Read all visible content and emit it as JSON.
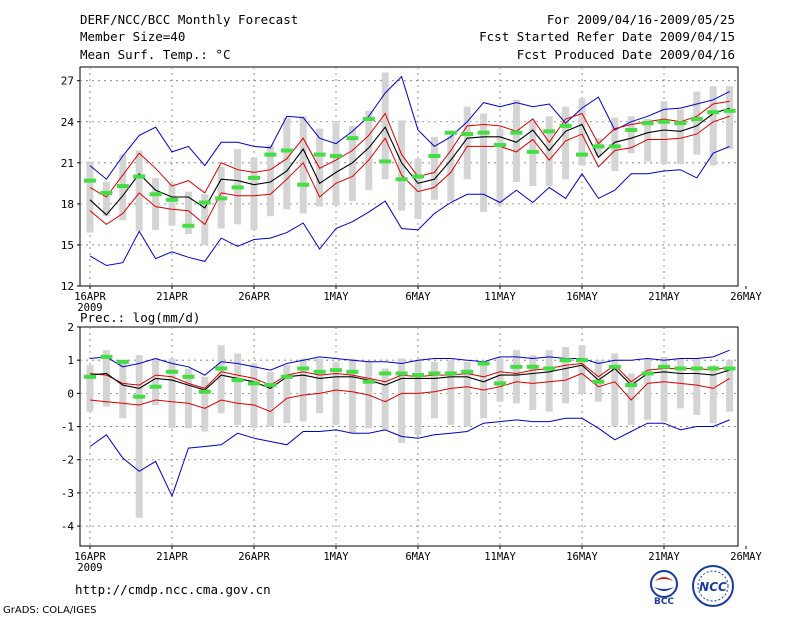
{
  "header": {
    "title": "DERF/NCC/BCC Monthly Forecast",
    "member_size": "Member Size=40",
    "variable": "Mean Surf. Temp.: °C",
    "period": "For 2009/04/16-2009/05/25",
    "started": "Fcst Started Refer Date 2009/04/15",
    "produced": "Fcst Produced Date 2009/04/16"
  },
  "footer": {
    "url": "http://cmdp.ncc.cma.gov.cn",
    "grads": "GrADS: COLA/IGES",
    "logo_bcc": "BCC",
    "logo_ncc": "NCC"
  },
  "colors": {
    "max_min": "#0000cc",
    "spread": "#dd0000",
    "ensemble_mean": "#000000",
    "observed_bar": "#44dd44",
    "range_bar": "#d4d4d4",
    "grid": "#777777"
  },
  "chart_data": [
    {
      "type": "line",
      "id": "temp",
      "ylim": [
        12,
        28
      ],
      "yticks": [
        12,
        15,
        18,
        21,
        24,
        27
      ],
      "xticks": [
        {
          "day": 0,
          "label": "16APR",
          "sub": "2009"
        },
        {
          "day": 5,
          "label": "21APR"
        },
        {
          "day": 10,
          "label": "26APR"
        },
        {
          "day": 15,
          "label": "1MAY"
        },
        {
          "day": 20,
          "label": "6MAY"
        },
        {
          "day": 25,
          "label": "11MAY"
        },
        {
          "day": 30,
          "label": "16MAY"
        },
        {
          "day": 35,
          "label": "21MAY"
        },
        {
          "day": 40,
          "label": "26MAY"
        }
      ],
      "x": [
        0,
        1,
        2,
        3,
        4,
        5,
        6,
        7,
        8,
        9,
        10,
        11,
        12,
        13,
        14,
        15,
        16,
        17,
        18,
        19,
        20,
        21,
        22,
        23,
        24,
        25,
        26,
        27,
        28,
        29,
        30,
        31,
        32,
        33,
        34,
        35,
        36,
        37,
        38,
        39
      ],
      "series": [
        {
          "name": "max",
          "color": "#0000cc",
          "values": [
            20.8,
            19.8,
            21.5,
            23.0,
            23.6,
            21.8,
            22.2,
            20.8,
            22.5,
            22.5,
            22.2,
            22.1,
            24.4,
            24.3,
            22.8,
            22.4,
            23.3,
            24.4,
            26.1,
            27.3,
            23.4,
            22.2,
            22.9,
            24.0,
            25.4,
            25.1,
            25.4,
            25.1,
            25.3,
            23.9,
            25.0,
            25.8,
            23.4,
            24.0,
            24.4,
            24.9,
            25.0,
            25.3,
            25.6,
            26.2
          ]
        },
        {
          "name": "p75",
          "color": "#dd0000",
          "values": [
            19.2,
            18.5,
            20.1,
            21.7,
            20.6,
            19.3,
            19.7,
            18.8,
            21.0,
            20.5,
            20.3,
            20.5,
            21.3,
            22.8,
            20.6,
            21.2,
            21.9,
            23.0,
            24.6,
            21.6,
            20.0,
            20.3,
            21.9,
            23.7,
            23.8,
            23.7,
            23.3,
            24.2,
            22.5,
            24.2,
            24.6,
            22.4,
            23.5,
            23.8,
            24.0,
            24.2,
            24.0,
            24.4,
            25.3,
            25.5
          ]
        },
        {
          "name": "mean",
          "color": "#000000",
          "values": [
            18.3,
            17.2,
            18.6,
            20.2,
            19.0,
            18.5,
            18.5,
            17.7,
            19.8,
            19.7,
            19.4,
            19.6,
            20.4,
            22.0,
            19.5,
            20.3,
            21.0,
            22.1,
            23.6,
            21.0,
            19.5,
            19.8,
            21.2,
            22.8,
            22.9,
            22.9,
            22.5,
            23.4,
            21.9,
            23.3,
            23.8,
            21.4,
            22.5,
            22.8,
            23.2,
            23.4,
            23.3,
            23.7,
            24.6,
            25.0
          ]
        },
        {
          "name": "p25",
          "color": "#dd0000",
          "values": [
            17.5,
            16.5,
            17.3,
            18.8,
            17.8,
            17.6,
            17.5,
            16.5,
            18.8,
            18.6,
            18.6,
            18.7,
            19.8,
            21.0,
            18.5,
            19.5,
            20.0,
            21.2,
            22.8,
            20.1,
            18.9,
            19.2,
            20.3,
            22.2,
            22.2,
            22.2,
            21.8,
            22.7,
            21.2,
            22.6,
            23.1,
            20.7,
            21.9,
            22.1,
            22.7,
            22.7,
            22.8,
            23.1,
            24.0,
            24.4
          ]
        },
        {
          "name": "min",
          "color": "#0000cc",
          "values": [
            14.2,
            13.5,
            13.7,
            16.0,
            14.0,
            14.5,
            14.1,
            13.8,
            15.5,
            14.9,
            15.4,
            15.5,
            15.9,
            16.6,
            14.7,
            16.2,
            16.7,
            17.4,
            18.2,
            16.2,
            16.1,
            17.3,
            18.1,
            18.7,
            18.7,
            18.1,
            19.0,
            18.1,
            19.2,
            18.4,
            20.2,
            18.4,
            19.0,
            20.2,
            20.2,
            20.4,
            20.5,
            19.9,
            21.7,
            22.2
          ]
        }
      ],
      "range_bars": {
        "low": [
          15.9,
          17.1,
          16.8,
          16.0,
          16.1,
          16.4,
          15.8,
          15.0,
          16.2,
          16.5,
          16.1,
          17.1,
          17.6,
          17.3,
          17.8,
          17.9,
          18.2,
          19.0,
          19.8,
          17.5,
          16.9,
          18.3,
          18.2,
          19.8,
          17.4,
          17.9,
          19.6,
          19.3,
          19.3,
          19.8,
          20.8,
          21.5,
          20.4,
          21.7,
          21.1,
          20.9,
          20.9,
          21.6,
          20.8,
          22.0
        ],
        "high": [
          21.1,
          19.6,
          21.6,
          21.9,
          19.9,
          19.5,
          18.9,
          18.7,
          20.7,
          22.0,
          21.4,
          22.3,
          24.3,
          24.4,
          23.5,
          23.9,
          23.7,
          24.8,
          27.6,
          24.1,
          21.3,
          22.9,
          23.0,
          25.1,
          24.6,
          23.5,
          25.6,
          24.1,
          24.4,
          25.1,
          25.7,
          22.8,
          24.3,
          24.4,
          24.2,
          25.5,
          24.9,
          26.2,
          26.6,
          26.6
        ]
      },
      "observed": [
        19.7,
        18.8,
        19.3,
        20.0,
        18.7,
        18.3,
        16.4,
        18.1,
        18.4,
        19.2,
        19.9,
        21.6,
        21.9,
        19.4,
        21.6,
        21.5,
        22.8,
        24.2,
        21.1,
        19.8,
        20.0,
        21.5,
        23.2,
        23.1,
        23.2,
        22.3,
        23.2,
        21.8,
        23.3,
        23.7,
        21.6,
        22.2,
        22.2,
        23.4,
        23.9,
        24.0,
        23.9,
        24.2,
        24.7,
        24.8
      ]
    },
    {
      "type": "line",
      "id": "precip",
      "title": "Prec.: log(mm/d)",
      "ylim": [
        -4.6,
        2
      ],
      "yticks": [
        -4,
        -3,
        -2,
        -1,
        0,
        1,
        2
      ],
      "xticks": [
        {
          "day": 0,
          "label": "16APR",
          "sub": "2009"
        },
        {
          "day": 5,
          "label": "21APR"
        },
        {
          "day": 10,
          "label": "26APR"
        },
        {
          "day": 15,
          "label": "1MAY"
        },
        {
          "day": 20,
          "label": "6MAY"
        },
        {
          "day": 25,
          "label": "11MAY"
        },
        {
          "day": 30,
          "label": "16MAY"
        },
        {
          "day": 35,
          "label": "21MAY"
        },
        {
          "day": 40,
          "label": "26MAY"
        }
      ],
      "x": [
        0,
        1,
        2,
        3,
        4,
        5,
        6,
        7,
        8,
        9,
        10,
        11,
        12,
        13,
        14,
        15,
        16,
        17,
        18,
        19,
        20,
        21,
        22,
        23,
        24,
        25,
        26,
        27,
        28,
        29,
        30,
        31,
        32,
        33,
        34,
        35,
        36,
        37,
        38,
        39
      ],
      "series": [
        {
          "name": "max",
          "color": "#0000cc",
          "values": [
            1.05,
            1.1,
            0.8,
            0.9,
            1.05,
            0.9,
            0.8,
            0.55,
            0.95,
            0.9,
            0.8,
            0.7,
            0.9,
            1.0,
            1.1,
            1.05,
            1.0,
            0.95,
            0.95,
            0.9,
            1.0,
            1.05,
            1.05,
            1.0,
            0.95,
            1.1,
            1.1,
            1.05,
            1.1,
            1.05,
            1.05,
            0.9,
            1.0,
            1.0,
            1.05,
            1.0,
            1.05,
            1.05,
            1.1,
            1.3
          ]
        },
        {
          "name": "p75",
          "color": "#dd0000",
          "values": [
            0.6,
            0.55,
            0.3,
            0.25,
            0.55,
            0.5,
            0.3,
            0.15,
            0.65,
            0.55,
            0.45,
            0.25,
            0.55,
            0.65,
            0.55,
            0.6,
            0.55,
            0.45,
            0.35,
            0.55,
            0.5,
            0.55,
            0.55,
            0.6,
            0.5,
            0.65,
            0.6,
            0.7,
            0.75,
            0.85,
            0.9,
            0.5,
            0.85,
            0.35,
            0.7,
            0.75,
            0.75,
            0.75,
            0.7,
            0.8
          ]
        },
        {
          "name": "mean",
          "color": "#000000",
          "values": [
            0.55,
            0.6,
            0.25,
            0.15,
            0.45,
            0.4,
            0.25,
            0.1,
            0.55,
            0.45,
            0.35,
            0.15,
            0.5,
            0.55,
            0.45,
            0.5,
            0.5,
            0.4,
            0.25,
            0.45,
            0.45,
            0.45,
            0.5,
            0.5,
            0.35,
            0.55,
            0.55,
            0.6,
            0.65,
            0.75,
            0.85,
            0.4,
            0.75,
            0.25,
            0.6,
            0.65,
            0.6,
            0.6,
            0.55,
            0.7
          ]
        },
        {
          "name": "p25",
          "color": "#dd0000",
          "values": [
            -0.2,
            -0.25,
            -0.3,
            -0.35,
            -0.2,
            -0.25,
            -0.3,
            -0.45,
            -0.2,
            -0.3,
            -0.35,
            -0.55,
            -0.15,
            -0.05,
            0.0,
            0.1,
            0.05,
            -0.05,
            -0.25,
            0.0,
            0.0,
            0.05,
            0.15,
            0.2,
            0.1,
            0.2,
            0.35,
            0.3,
            0.35,
            0.4,
            0.6,
            0.2,
            0.35,
            -0.2,
            0.3,
            0.35,
            0.3,
            0.25,
            0.15,
            0.45
          ]
        },
        {
          "name": "min",
          "color": "#0000cc",
          "values": [
            -1.6,
            -1.25,
            -1.95,
            -2.35,
            -2.05,
            -3.1,
            -1.65,
            -1.6,
            -1.55,
            -1.2,
            -1.35,
            -1.45,
            -1.55,
            -1.15,
            -1.15,
            -1.1,
            -1.2,
            -1.2,
            -1.1,
            -1.3,
            -1.35,
            -1.25,
            -1.2,
            -1.15,
            -0.9,
            -0.85,
            -0.8,
            -0.85,
            -0.85,
            -0.75,
            -0.75,
            -1.05,
            -1.4,
            -1.15,
            -0.9,
            -0.9,
            -1.1,
            -1.0,
            -1.0,
            -0.8
          ]
        }
      ],
      "range_bars": {
        "low": [
          -0.55,
          -0.4,
          -0.75,
          -3.75,
          -0.35,
          -1.05,
          -1.05,
          -1.15,
          -0.6,
          -0.95,
          -1.05,
          -1.0,
          -0.9,
          -0.85,
          -0.6,
          -0.95,
          -1.2,
          -1.05,
          -1.1,
          -1.5,
          -1.25,
          -0.75,
          -0.95,
          -1.0,
          -0.75,
          -0.25,
          -0.3,
          -0.5,
          -0.55,
          -0.3,
          0.0,
          -0.25,
          -1.0,
          -0.95,
          -0.8,
          -0.85,
          -0.45,
          -0.65,
          -0.9,
          -0.55
        ],
        "high": [
          0.85,
          1.3,
          0.95,
          1.15,
          1.05,
          1.05,
          0.75,
          0.5,
          1.45,
          1.2,
          0.9,
          0.65,
          0.85,
          1.05,
          1.05,
          0.95,
          1.05,
          0.95,
          0.75,
          1.05,
          1.0,
          0.95,
          1.0,
          0.95,
          0.9,
          1.05,
          1.3,
          1.15,
          1.3,
          1.4,
          1.45,
          1.0,
          1.2,
          0.6,
          1.05,
          1.1,
          1.05,
          1.05,
          0.85,
          1.0
        ]
      },
      "observed": [
        0.5,
        1.1,
        0.95,
        -0.1,
        0.2,
        0.65,
        0.5,
        0.05,
        0.75,
        0.4,
        0.3,
        0.25,
        0.5,
        0.75,
        0.65,
        0.7,
        0.65,
        0.35,
        0.6,
        0.6,
        0.55,
        0.6,
        0.6,
        0.65,
        0.9,
        0.3,
        0.8,
        0.8,
        0.75,
        1.0,
        1.0,
        0.35,
        0.8,
        0.25,
        0.6,
        0.8,
        0.75,
        0.75,
        0.75,
        0.75
      ]
    }
  ]
}
